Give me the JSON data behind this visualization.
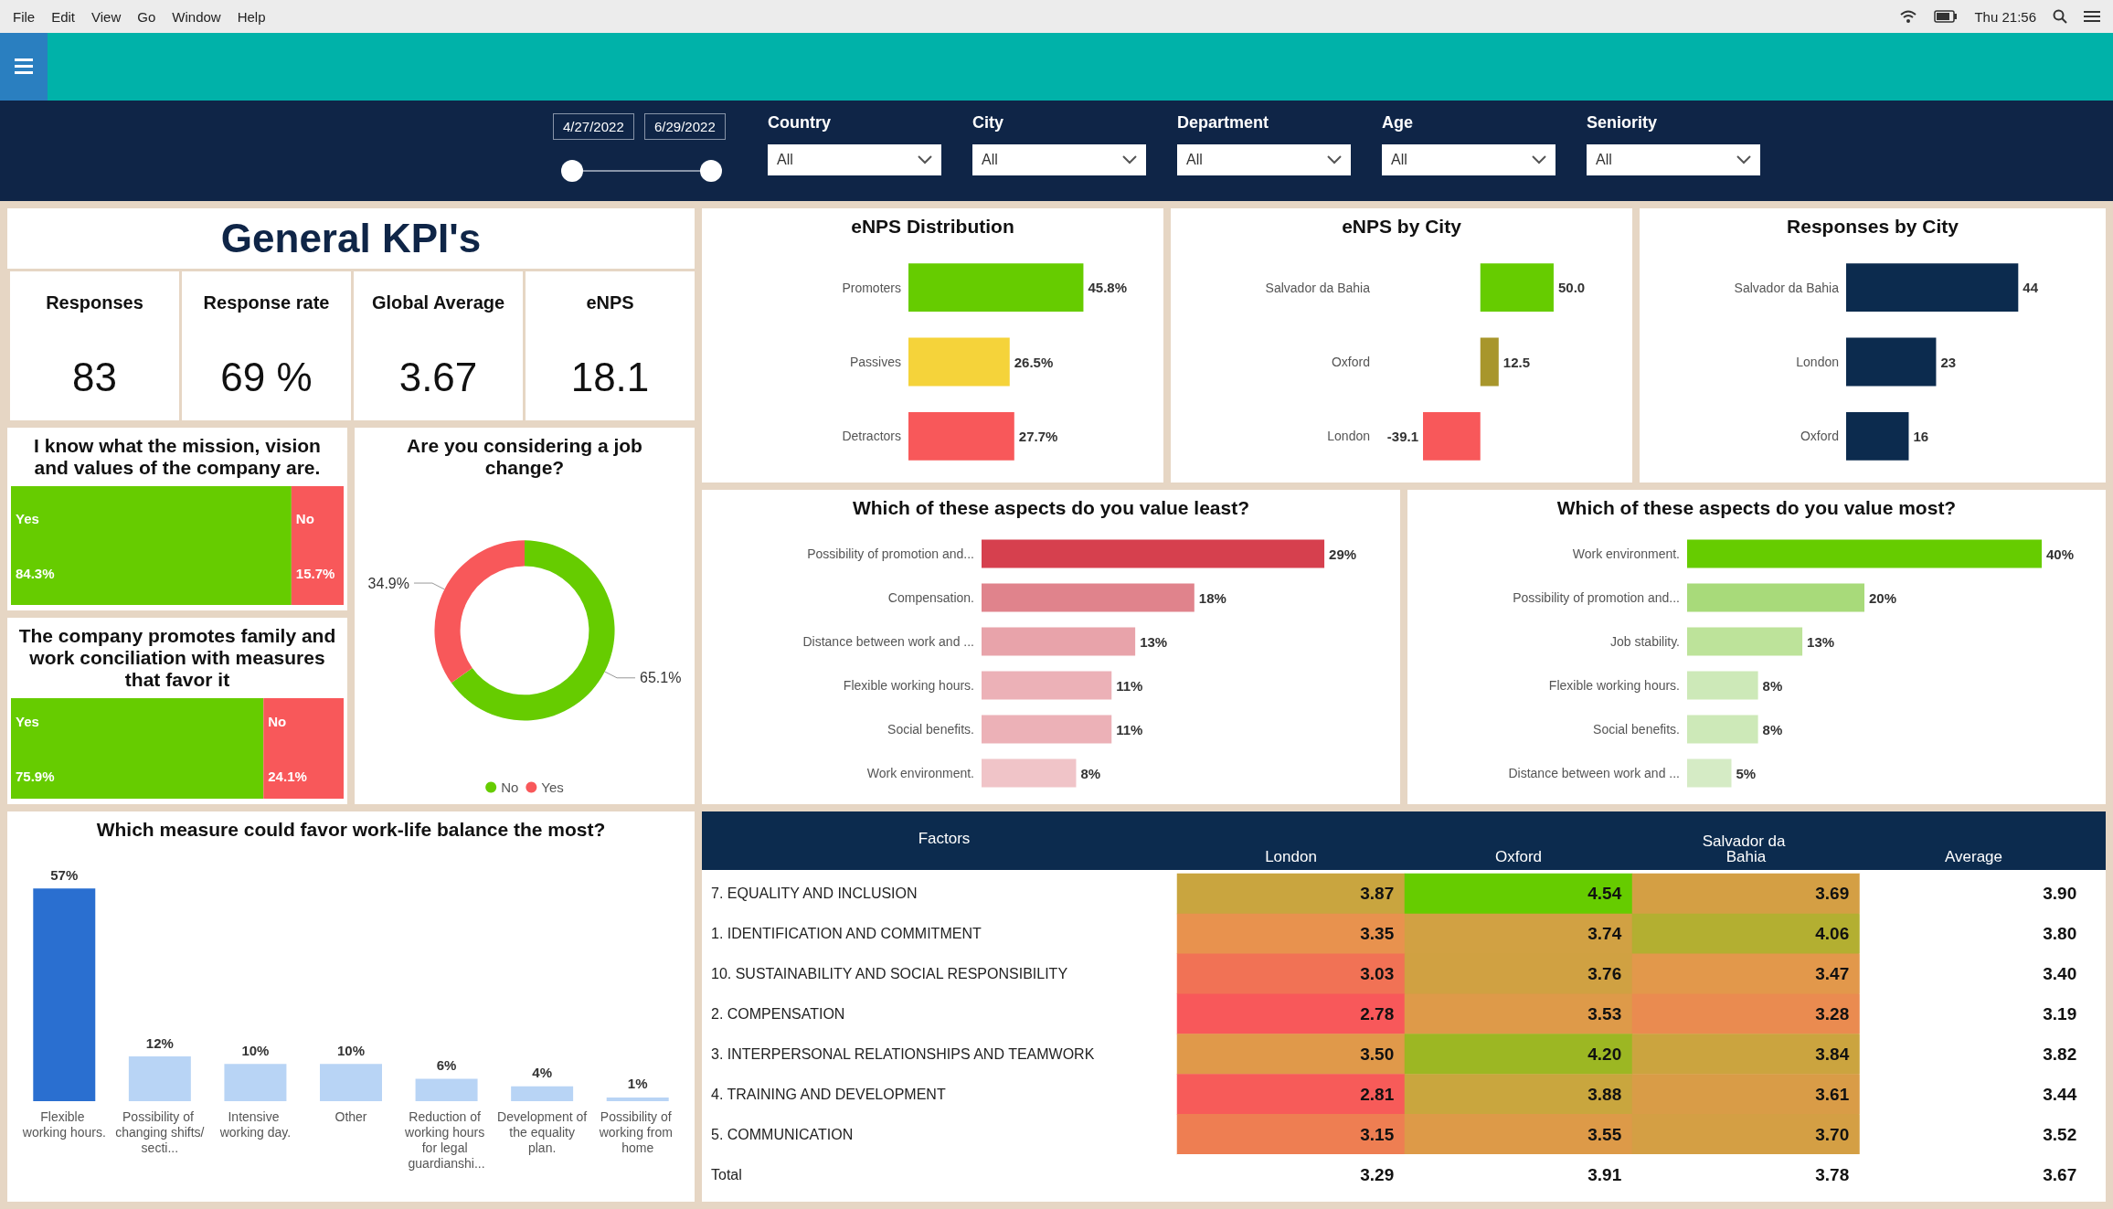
{
  "chart_data": [
    {
      "type": "other",
      "annotations": [
        "File",
        "Edit",
        "View",
        "Go",
        "Window",
        "Help",
        "Thu 21:56"
      ]
    },
    {
      "type": "other",
      "annotations": [
        "4/27/2022",
        "6/29/2022",
        "Country",
        "All",
        "City",
        "All",
        "Department",
        "All",
        "Age",
        "All",
        "Seniority",
        "All"
      ]
    },
    {
      "type": "other",
      "title": "General KPI's",
      "annotations": [
        "Responses",
        "83",
        "Response rate",
        "69 %",
        "Global Average",
        "3.67",
        "eNPS",
        "18.1"
      ]
    },
    {
      "type": "bar",
      "orientation": "horizontal",
      "title": "eNPS Distribution",
      "categories": [
        "Promoters",
        "Passives",
        "Detractors"
      ],
      "values": [
        45.8,
        26.5,
        27.7
      ],
      "colors": [
        "#66cc00",
        "#f5d33a",
        "#f8585a"
      ],
      "value_labels": [
        "45.8%",
        "26.5%",
        "27.7%"
      ]
    },
    {
      "type": "bar",
      "orientation": "horizontal",
      "title": "eNPS by City",
      "categories": [
        "Salvador da Bahia",
        "Oxford",
        "London"
      ],
      "values": [
        50.0,
        12.5,
        -39.1
      ],
      "colors": [
        "#66cc00",
        "#a8962c",
        "#f8585a"
      ],
      "value_labels": [
        "50.0",
        "12.5",
        "-39.1"
      ]
    },
    {
      "type": "bar",
      "orientation": "horizontal",
      "title": "Responses by City",
      "categories": [
        "Salvador da Bahia",
        "London",
        "Oxford"
      ],
      "values": [
        44,
        23,
        16
      ],
      "color": "#0c2b4e",
      "data_labels": true
    },
    {
      "type": "bar",
      "orientation": "horizontal",
      "stacked": true,
      "title": "I know what the mission, vision and values of the company are.",
      "categories": [
        null
      ],
      "series": [
        {
          "name": "Yes",
          "color": "#66cc00",
          "values": [
            84.3
          ],
          "value_labels": [
            "84.3%"
          ]
        },
        {
          "name": "No",
          "color": "#f8585a",
          "values": [
            15.7
          ],
          "value_labels": [
            "15.7%"
          ]
        }
      ]
    },
    {
      "type": "donut",
      "title": "Are you considering a job change?",
      "categories": [
        "No",
        "Yes"
      ],
      "values": [
        65.1,
        34.9
      ],
      "colors": [
        "#66cc00",
        "#f8585a"
      ],
      "value_labels": [
        "65.1%",
        "34.9%"
      ],
      "legend": "bottom"
    },
    {
      "type": "bar",
      "orientation": "horizontal",
      "title": "Which of these aspects do you value least?",
      "categories": [
        "Possibility of promotion and...",
        "Compensation.",
        "Distance between work and ...",
        "Flexible working hours.",
        "Social benefits.",
        "Work environment."
      ],
      "values": [
        29,
        18,
        13,
        11,
        11,
        8
      ],
      "colors": [
        "#d6404e",
        "#e0838c",
        "#e8a3aa",
        "#ecb1b7",
        "#ecb1b7",
        "#f0c4c8"
      ],
      "value_labels": [
        "29%",
        "18%",
        "13%",
        "11%",
        "11%",
        "8%"
      ]
    },
    {
      "type": "bar",
      "orientation": "horizontal",
      "title": "Which of these aspects do you value most?",
      "categories": [
        "Work environment.",
        "Possibility of promotion and...",
        "Job stability.",
        "Flexible working hours.",
        "Social benefits.",
        "Distance between work and ..."
      ],
      "values": [
        40,
        20,
        13,
        8,
        8,
        5
      ],
      "colors": [
        "#66cc00",
        "#a8da7a",
        "#bde39a",
        "#cde9b8",
        "#cde9b8",
        "#d5ebc5"
      ],
      "value_labels": [
        "40%",
        "20%",
        "13%",
        "8%",
        "8%",
        "5%"
      ]
    },
    {
      "type": "bar",
      "orientation": "horizontal",
      "stacked": true,
      "title": "The company promotes family and work conciliation with measures that favor it",
      "categories": [
        null
      ],
      "series": [
        {
          "name": "Yes",
          "color": "#66cc00",
          "values": [
            75.9
          ],
          "value_labels": [
            "75.9%"
          ]
        },
        {
          "name": "No",
          "color": "#f8585a",
          "values": [
            24.1
          ],
          "value_labels": [
            "24.1%"
          ]
        }
      ]
    },
    {
      "type": "bar",
      "title": "Which measure could favor work-life balance the most?",
      "categories": [
        "Flexible working hours.",
        "Possibility of changing shifts/secti...",
        "Intensive working day.",
        "Other",
        "Reduction of working hours for legal guardianshi...",
        "Development of the equality plan.",
        "Possibility of working from home"
      ],
      "values": [
        57,
        12,
        10,
        10,
        6,
        4,
        1
      ],
      "colors": [
        "#2a6fd0",
        "#b8d4f5",
        "#b8d4f5",
        "#b8d4f5",
        "#b8d4f5",
        "#b8d4f5",
        "#b8d4f5"
      ],
      "value_labels": [
        "57%",
        "12%",
        "10%",
        "10%",
        "6%",
        "4%",
        "1%"
      ]
    },
    {
      "type": "heatmap",
      "ylabel": "Factors",
      "categories": [
        "London",
        "Oxford",
        "Salvador da Bahia",
        "Average"
      ],
      "y_categories": [
        "7. EQUALITY AND INCLUSION",
        "1. IDENTIFICATION AND COMMITMENT",
        "10. SUSTAINABILITY AND SOCIAL RESPONSIBILITY",
        "2. COMPENSATION",
        "3. INTERPERSONAL RELATIONSHIPS AND TEAMWORK",
        "4. TRAINING AND DEVELOPMENT",
        "5. COMMUNICATION",
        "Total"
      ],
      "cells": [
        [
          3.87,
          4.54,
          3.69,
          3.9
        ],
        [
          3.35,
          3.74,
          4.06,
          3.8
        ],
        [
          3.03,
          3.76,
          3.47,
          3.4
        ],
        [
          2.78,
          3.53,
          3.28,
          3.19
        ],
        [
          3.5,
          4.2,
          3.84,
          3.82
        ],
        [
          2.81,
          3.88,
          3.61,
          3.44
        ],
        [
          3.15,
          3.55,
          3.7,
          3.52
        ],
        [
          3.29,
          3.91,
          3.78,
          3.67
        ]
      ],
      "cell_labels": [
        [
          "3.87",
          "4.54",
          "3.69",
          "3.90"
        ],
        [
          "3.35",
          "3.74",
          "4.06",
          "3.80"
        ],
        [
          "3.03",
          "3.76",
          "3.47",
          "3.40"
        ],
        [
          "2.78",
          "3.53",
          "3.28",
          "3.19"
        ],
        [
          "3.50",
          "4.20",
          "3.84",
          "3.82"
        ],
        [
          "2.81",
          "3.88",
          "3.61",
          "3.44"
        ],
        [
          "3.15",
          "3.55",
          "3.70",
          "3.52"
        ],
        [
          "3.29",
          "3.91",
          "3.78",
          "3.67"
        ]
      ]
    }
  ]
}
